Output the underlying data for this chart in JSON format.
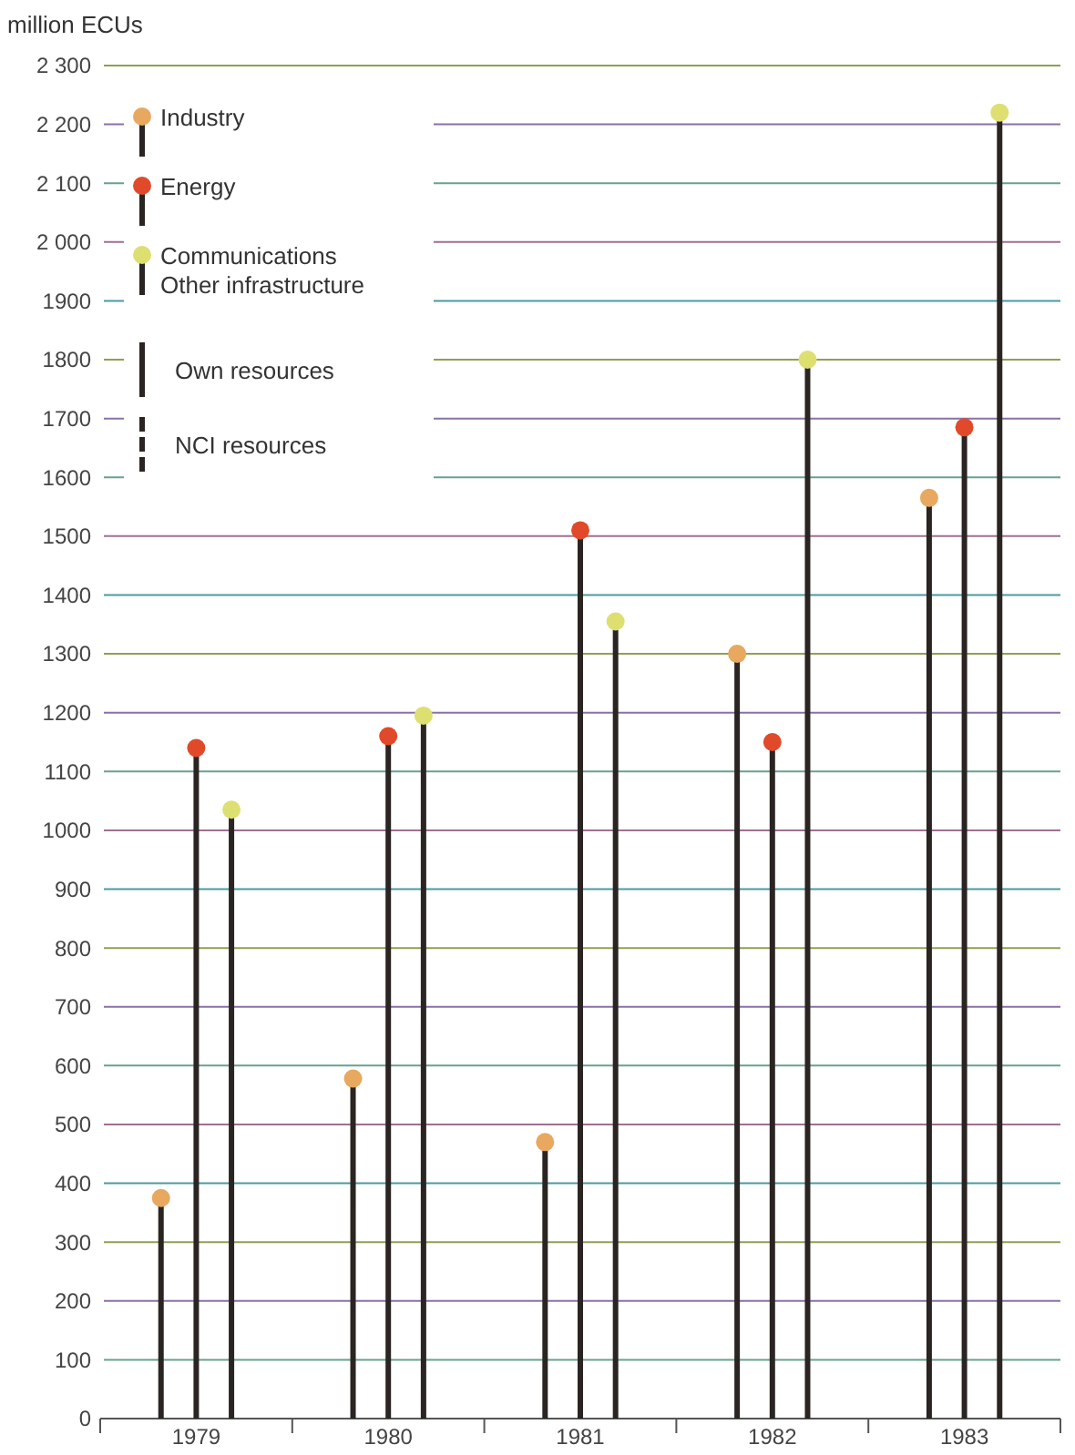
{
  "chart_data": {
    "type": "lollipop",
    "ylabel": "million ECUs",
    "categories": [
      "1979",
      "1980",
      "1981",
      "1982",
      "1983"
    ],
    "series": [
      {
        "name": "Industry",
        "color": "#e8a860",
        "values": [
          375,
          578,
          470,
          1300,
          1565
        ]
      },
      {
        "name": "Energy",
        "color": "#e04a2a",
        "values": [
          1140,
          1160,
          1510,
          1150,
          1685
        ]
      },
      {
        "name": "Communications\nOther infrastructure",
        "color": "#dde070",
        "values": [
          1035,
          1195,
          1355,
          1800,
          2220
        ]
      }
    ],
    "ylim": [
      0,
      2300
    ],
    "yticks": [
      0,
      100,
      200,
      300,
      400,
      500,
      600,
      700,
      800,
      900,
      1000,
      1100,
      1200,
      1300,
      1400,
      1500,
      1600,
      1700,
      1800,
      1900,
      {
        "value": 2000,
        "label": "2 000"
      },
      {
        "value": 2100,
        "label": "2 100"
      },
      {
        "value": 2200,
        "label": "2 200"
      },
      {
        "value": 2300,
        "label": "2 300"
      }
    ],
    "grid": "y",
    "legend": "top left",
    "marker": "circle",
    "annotations": [
      "Own resources",
      "NCI resources"
    ]
  }
}
